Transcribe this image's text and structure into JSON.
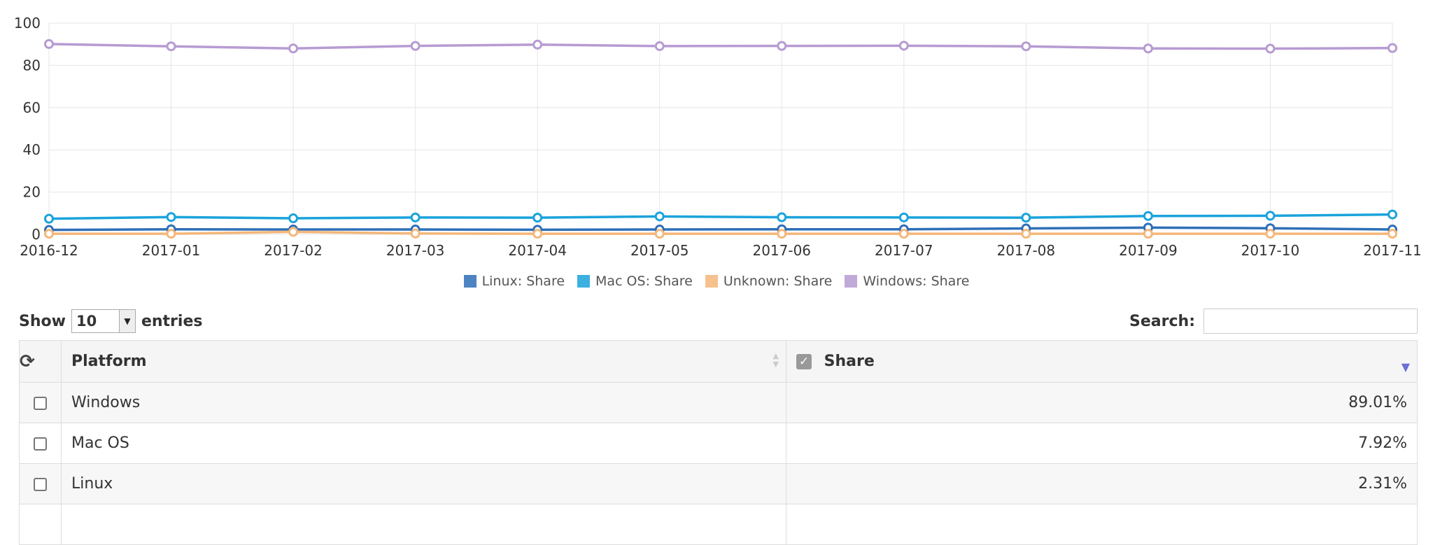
{
  "chart_data": {
    "type": "line",
    "x": [
      "2016-12",
      "2017-01",
      "2017-02",
      "2017-03",
      "2017-04",
      "2017-05",
      "2017-06",
      "2017-07",
      "2017-08",
      "2017-09",
      "2017-10",
      "2017-11"
    ],
    "ylim": [
      0,
      100
    ],
    "yticks": [
      "0",
      "20",
      "40",
      "60",
      "80",
      "100"
    ],
    "grid": true,
    "legend_position": "bottom",
    "series": [
      {
        "name": "Linux: Share",
        "color": "#2f6fb7",
        "values": [
          2.1,
          2.4,
          2.3,
          2.3,
          2.2,
          2.3,
          2.4,
          2.4,
          2.8,
          3.2,
          2.9,
          2.31
        ]
      },
      {
        "name": "Mac OS: Share",
        "color": "#1aa3dc",
        "values": [
          7.4,
          8.2,
          7.6,
          8.0,
          7.9,
          8.5,
          8.1,
          8.0,
          7.9,
          8.7,
          8.8,
          9.4
        ]
      },
      {
        "name": "Unknown: Share",
        "color": "#f4b77a",
        "values": [
          0.3,
          0.3,
          1.2,
          0.4,
          0.3,
          0.3,
          0.3,
          0.3,
          0.3,
          0.3,
          0.3,
          0.3
        ]
      },
      {
        "name": "Windows: Share",
        "color": "#b79bd2",
        "values": [
          90.1,
          89.0,
          88.0,
          89.2,
          89.8,
          89.1,
          89.2,
          89.3,
          89.0,
          88.0,
          87.9,
          88.2
        ]
      }
    ]
  },
  "controls": {
    "show_label": "Show",
    "length_value": "10",
    "entries_label": "entries",
    "search_label": "Search:",
    "search_value": ""
  },
  "table": {
    "headers": {
      "platform": "Platform",
      "share": "Share"
    },
    "rows": [
      {
        "platform": "Windows",
        "share": "89.01%"
      },
      {
        "platform": "Mac OS",
        "share": "7.92%"
      },
      {
        "platform": "Linux",
        "share": "2.31%"
      },
      {
        "platform": "",
        "share": ""
      }
    ]
  },
  "icons": {
    "refresh": "refresh-icon",
    "checkbox": "checkbox-icon",
    "sort": "sort-icon"
  }
}
